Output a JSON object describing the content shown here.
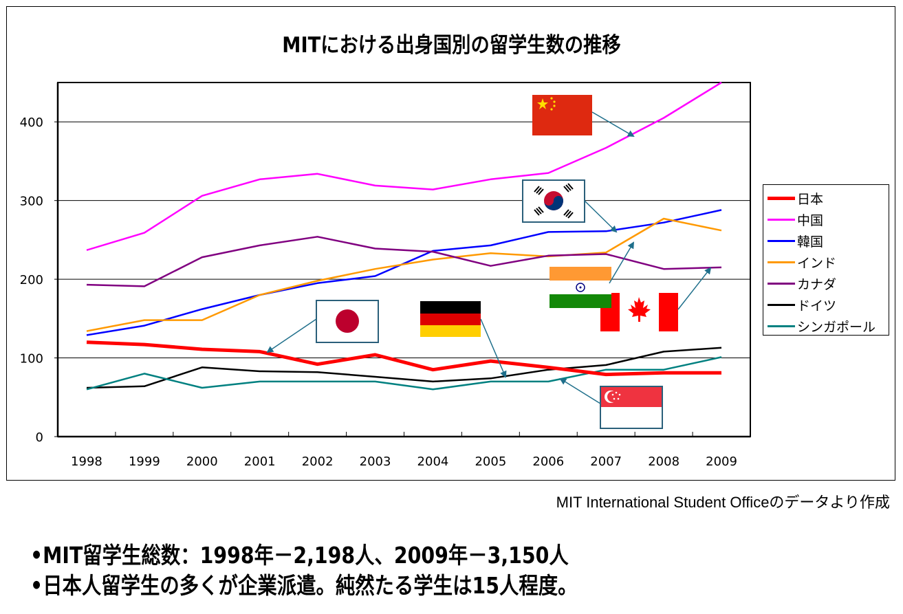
{
  "title": "MITにおける出身国別の留学生数の推移",
  "source_note": "MIT International Student Officeのデータより作成",
  "bullets": [
    "•MIT留学生総数：1998年－2,198人、2009年－3,150人",
    "•日本人留学生の多くが企業派遣。純然たる学生は15人程度。"
  ],
  "chart_data": {
    "type": "line",
    "title": "MITにおける出身国別の留学生数の推移",
    "xlabel": "",
    "ylabel": "",
    "x": [
      "1998",
      "1999",
      "2000",
      "2001",
      "2002",
      "2003",
      "2004",
      "2005",
      "2006",
      "2007",
      "2008",
      "2009"
    ],
    "ylim": [
      0,
      450
    ],
    "yticks": [
      "0",
      "100",
      "200",
      "300",
      "400"
    ],
    "ytick_values": [
      0,
      100,
      200,
      300,
      400
    ],
    "grid": true,
    "legend_position": "right",
    "series": [
      {
        "name": "日本",
        "color": "#ff0000",
        "values": [
          120,
          117,
          111,
          108,
          92,
          104,
          85,
          96,
          88,
          79,
          81,
          81
        ]
      },
      {
        "name": "中国",
        "color": "#ff00ff",
        "values": [
          237,
          259,
          306,
          327,
          334,
          319,
          314,
          327,
          335,
          367,
          405,
          450
        ]
      },
      {
        "name": "韓国",
        "color": "#0000ff",
        "values": [
          129,
          141,
          162,
          180,
          195,
          204,
          236,
          243,
          260,
          261,
          272,
          288
        ]
      },
      {
        "name": "インド",
        "color": "#ff9900",
        "values": [
          134,
          148,
          148,
          180,
          198,
          213,
          225,
          233,
          229,
          234,
          277,
          262
        ]
      },
      {
        "name": "カナダ",
        "color": "#800080",
        "values": [
          193,
          191,
          228,
          243,
          254,
          239,
          235,
          217,
          230,
          232,
          213,
          215
        ]
      },
      {
        "name": "ドイツ",
        "color": "#000000",
        "values": [
          62,
          64,
          88,
          83,
          82,
          76,
          70,
          74,
          85,
          91,
          108,
          113
        ]
      },
      {
        "name": "シンガポール",
        "color": "#008080",
        "values": [
          60,
          80,
          62,
          70,
          70,
          70,
          60,
          70,
          70,
          85,
          85,
          101
        ]
      }
    ],
    "annotations": [
      {
        "flag": "china-flag",
        "points_to": "中国"
      },
      {
        "flag": "korea-flag",
        "points_to": "韓国"
      },
      {
        "flag": "india-flag",
        "points_to": "インド"
      },
      {
        "flag": "canada-flag",
        "points_to": "カナダ"
      },
      {
        "flag": "japan-flag",
        "points_to": "日本"
      },
      {
        "flag": "germany-flag",
        "points_to": "ドイツ"
      },
      {
        "flag": "singapore-flag",
        "points_to": "シンガポール"
      }
    ]
  },
  "colors": {
    "arrow": "#1f6f8b",
    "flag_border": "#2a5f7a"
  }
}
